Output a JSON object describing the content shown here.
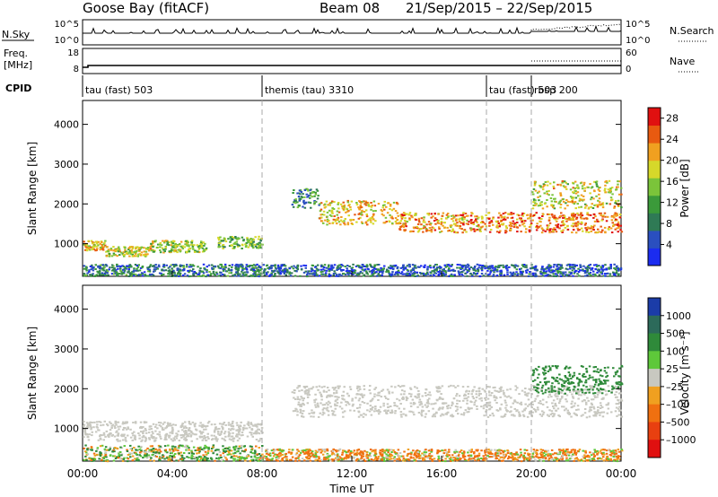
{
  "header": {
    "station": "Goose Bay (fitACF)",
    "beam": "Beam 08",
    "date_range": "21/Sep/2015 – 22/Sep/2015"
  },
  "top_panels": {
    "nsky": {
      "label": "N.Sky",
      "ticks": [
        "10^5",
        "10^0"
      ],
      "right_ticks": [
        "10^5",
        "10^0"
      ],
      "right_label": "N.Search"
    },
    "freq": {
      "label_line1": "Freq.",
      "label_line2": "[MHz]",
      "ticks": [
        "18",
        "8"
      ],
      "right_ticks": [
        "60",
        "0"
      ],
      "right_label": "Nave"
    },
    "cpid": {
      "label": "CPID"
    }
  },
  "cpid_segments": [
    {
      "label": "tau (fast) 503",
      "start_hour": 0
    },
    {
      "label": "themis (tau) 3310",
      "start_hour": 8
    },
    {
      "label": "tau (fast) 503",
      "start_hour": 18
    },
    {
      "label": "rbsp 200",
      "start_hour": 20
    }
  ],
  "x_axis": {
    "label": "Time UT",
    "range_hours": [
      0,
      24
    ],
    "tick_hours": [
      0,
      4,
      8,
      12,
      16,
      20,
      24
    ],
    "tick_labels": [
      "00:00",
      "04:00",
      "08:00",
      "12:00",
      "16:00",
      "20:00",
      "00:00"
    ]
  },
  "chart_data": [
    {
      "type": "heatmap",
      "ylabel": "Slant Range [km]",
      "ylim": [
        180,
        4600
      ],
      "y_ticks": [
        1000,
        2000,
        3000,
        4000
      ],
      "colorbar": {
        "label": "Power [dB]",
        "range": [
          0,
          30
        ],
        "ticks": [
          4,
          8,
          12,
          16,
          20,
          24,
          28
        ],
        "colors": [
          "#1b2cf0",
          "#2a4fbf",
          "#2f7a55",
          "#3b9a3a",
          "#7bc43a",
          "#d6d82a",
          "#f0a020",
          "#e85a10",
          "#e01010"
        ]
      },
      "regions": [
        {
          "t": [
            0.0,
            1.0
          ],
          "r": [
            850,
            1100
          ],
          "value": 20
        },
        {
          "t": [
            1.0,
            3.0
          ],
          "r": [
            700,
            950
          ],
          "value": 18
        },
        {
          "t": [
            3.0,
            5.5
          ],
          "r": [
            800,
            1100
          ],
          "value": 16
        },
        {
          "t": [
            6.0,
            8.0
          ],
          "r": [
            900,
            1200
          ],
          "value": 14
        },
        {
          "t": [
            0.0,
            8.0
          ],
          "r": [
            200,
            500
          ],
          "value": 8
        },
        {
          "t": [
            9.3,
            10.5
          ],
          "r": [
            1900,
            2400
          ],
          "value": 10
        },
        {
          "t": [
            10.5,
            14.0
          ],
          "r": [
            1500,
            2100
          ],
          "value": 20
        },
        {
          "t": [
            14.0,
            18.0
          ],
          "r": [
            1300,
            1800
          ],
          "value": 22
        },
        {
          "t": [
            18.0,
            20.0
          ],
          "r": [
            1300,
            1800
          ],
          "value": 24
        },
        {
          "t": [
            20.0,
            24.0
          ],
          "r": [
            1300,
            1800
          ],
          "value": 24
        },
        {
          "t": [
            20.0,
            24.0
          ],
          "r": [
            1900,
            2600
          ],
          "value": 18
        },
        {
          "t": [
            8.0,
            24.0
          ],
          "r": [
            200,
            500
          ],
          "value": 6
        }
      ]
    },
    {
      "type": "heatmap",
      "ylabel": "Slant Range [km]",
      "ylim": [
        180,
        4600
      ],
      "y_ticks": [
        1000,
        2000,
        3000,
        4000
      ],
      "colorbar": {
        "label": "Velocity [m s⁻¹]",
        "range": [
          -1200,
          1200
        ],
        "ticks": [
          "1000",
          "500",
          "100",
          "25",
          "–25",
          "–100",
          "–500",
          "–1000"
        ],
        "colors": [
          "#1b3ca8",
          "#2c6a5a",
          "#2f8a3a",
          "#5ec83a",
          "#c8c8c0",
          "#f0a020",
          "#f07010",
          "#e84010",
          "#e01010"
        ]
      },
      "regions": [
        {
          "t": [
            0.0,
            8.0
          ],
          "r": [
            700,
            1200
          ],
          "value": 0
        },
        {
          "t": [
            0.0,
            8.0
          ],
          "r": [
            200,
            600
          ],
          "value": 50
        },
        {
          "t": [
            9.3,
            24.0
          ],
          "r": [
            1300,
            2100
          ],
          "value": 0
        },
        {
          "t": [
            20.0,
            24.0
          ],
          "r": [
            1900,
            2600
          ],
          "value": 300
        },
        {
          "t": [
            8.0,
            24.0
          ],
          "r": [
            200,
            500
          ],
          "value": -100
        }
      ]
    }
  ]
}
